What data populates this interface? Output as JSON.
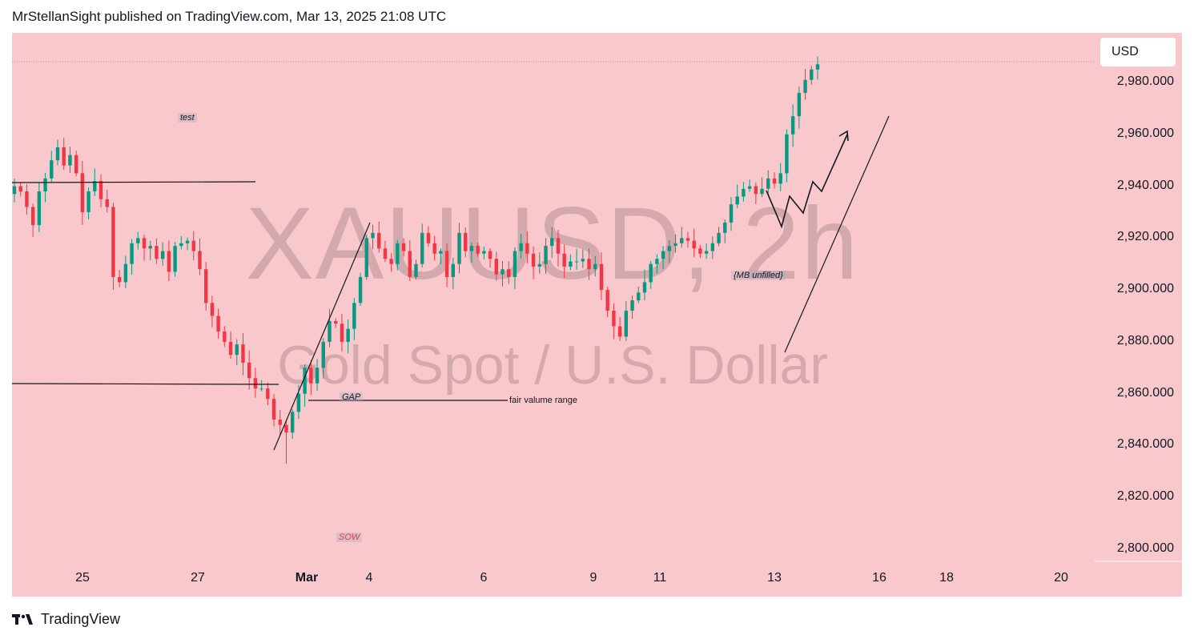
{
  "header": {
    "text": "MrStellanSight published on TradingView.com, Mar 13, 2025 21:08 UTC"
  },
  "footer": {
    "brand": "TradingView"
  },
  "watermark": {
    "symbol": "XAUUSD, 2h",
    "name": "Gold Spot / U.S. Dollar"
  },
  "annotations": {
    "test": "test",
    "gap": "GAP",
    "fvr": "fair valume range",
    "mb": "{MB unfilled}",
    "sow": "SOW"
  },
  "currency_button": "USD",
  "colors": {
    "background": "#f9c8cc",
    "bull": "#089981",
    "bear": "#f23645",
    "line": "#131722"
  },
  "chart_data": {
    "type": "candlestick",
    "symbol": "XAUUSD",
    "timeframe": "2h",
    "ylim": [
      2795,
      2997
    ],
    "yticks": [
      2800,
      2820,
      2840,
      2860,
      2880,
      2900,
      2920,
      2940,
      2960,
      2980
    ],
    "ytick_labels": [
      "2,800.000",
      "2,820.000",
      "2,840.000",
      "2,860.000",
      "2,880.000",
      "2,900.000",
      "2,920.000",
      "2,940.000",
      "2,960.000",
      "2,980.000"
    ],
    "xticks": [
      "25",
      "27",
      "Mar",
      "4",
      "6",
      "9",
      "11",
      "13",
      "16",
      "18",
      "20"
    ],
    "close_path": [
      2940,
      2938,
      2932,
      2925,
      2938,
      2943,
      2950,
      2955,
      2948,
      2952,
      2945,
      2930,
      2938,
      2942,
      2935,
      2932,
      2905,
      2903,
      2910,
      2918,
      2920,
      2916,
      2917,
      2912,
      2915,
      2907,
      2917,
      2918,
      2919,
      2915,
      2908,
      2895,
      2890,
      2884,
      2880,
      2875,
      2879,
      2872,
      2866,
      2862,
      2862,
      2858,
      2850,
      2848,
      2845,
      2853,
      2860,
      2870,
      2864,
      2870,
      2880,
      2888,
      2887,
      2880,
      2885,
      2895,
      2905,
      2920,
      2922,
      2916,
      2912,
      2910,
      2918,
      2915,
      2905,
      2910,
      2922,
      2918,
      2914,
      2915,
      2905,
      2910,
      2922,
      2915,
      2917,
      2914,
      2915,
      2912,
      2906,
      2908,
      2905,
      2915,
      2918,
      2914,
      2909,
      2910,
      2917,
      2920,
      2914,
      2909,
      2911,
      2911,
      2912,
      2908,
      2910,
      2900,
      2892,
      2886,
      2882,
      2892,
      2896,
      2899,
      2903,
      2910,
      2912,
      2915,
      2917,
      2918,
      2920,
      2919,
      2916,
      2914,
      2915,
      2918,
      2922,
      2926,
      2933,
      2936,
      2939,
      2940,
      2937,
      2939,
      2943,
      2941,
      2945,
      2960,
      2967,
      2976,
      2981,
      2985,
      2987
    ],
    "high": 2990,
    "low": 2833
  }
}
